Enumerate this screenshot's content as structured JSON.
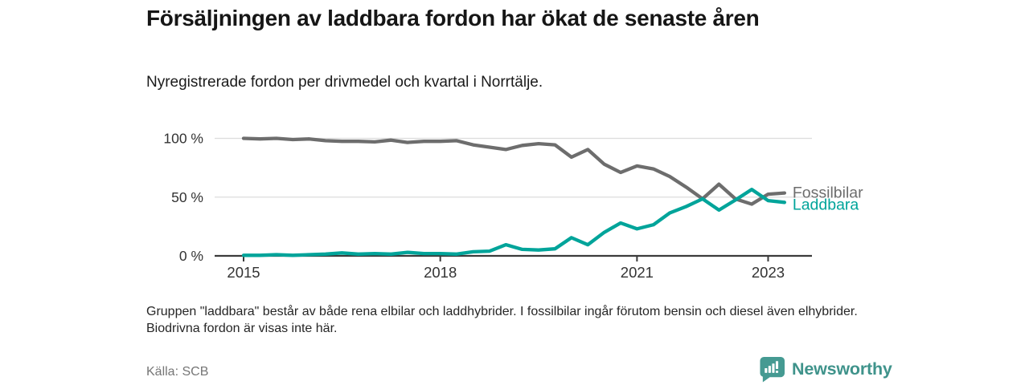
{
  "header": {
    "title": "Försäljningen av laddbara fordon har ökat de senaste åren",
    "subtitle": "Nyregistrerade fordon per drivmedel och kvartal i Norrtälje."
  },
  "chart_data": {
    "type": "line",
    "unit": "%",
    "ylim": [
      0,
      100
    ],
    "grid": "horizontal",
    "legend_position": "right-end-labels",
    "y_ticks": [
      {
        "label": "100 %",
        "value": 100
      },
      {
        "label": "50 %",
        "value": 50
      },
      {
        "label": "0 %",
        "value": 0
      }
    ],
    "x_ticks": [
      {
        "label": "2015",
        "quarter_index": 0
      },
      {
        "label": "2018",
        "quarter_index": 12
      },
      {
        "label": "2021",
        "quarter_index": 24
      },
      {
        "label": "2023",
        "quarter_index": 32
      }
    ],
    "quarters": [
      "2015 Q1",
      "2015 Q2",
      "2015 Q3",
      "2015 Q4",
      "2016 Q1",
      "2016 Q2",
      "2016 Q3",
      "2016 Q4",
      "2017 Q1",
      "2017 Q2",
      "2017 Q3",
      "2017 Q4",
      "2018 Q1",
      "2018 Q2",
      "2018 Q3",
      "2018 Q4",
      "2019 Q1",
      "2019 Q2",
      "2019 Q3",
      "2019 Q4",
      "2020 Q1",
      "2020 Q2",
      "2020 Q3",
      "2020 Q4",
      "2021 Q1",
      "2021 Q2",
      "2021 Q3",
      "2021 Q4",
      "2022 Q1",
      "2022 Q2",
      "2022 Q3",
      "2022 Q4",
      "2023 Q1",
      "2023 Q2"
    ],
    "series": [
      {
        "name": "Fossilbilar",
        "color": "#6d6d6d",
        "values": [
          100,
          99.5,
          100,
          99,
          99.5,
          98,
          97.5,
          97.5,
          97,
          98.5,
          96.5,
          97.5,
          97.5,
          98,
          94.5,
          92.5,
          90.5,
          94,
          95.5,
          94.5,
          84,
          90.5,
          78,
          71,
          76.5,
          74,
          67.5,
          58.5,
          48.5,
          61,
          48.5,
          44,
          52.5,
          53.5
        ]
      },
      {
        "name": "Laddbara",
        "color": "#00a49a",
        "values": [
          0.5,
          0.5,
          1,
          0.5,
          1,
          1.5,
          2.5,
          1.5,
          2,
          1.5,
          3,
          2,
          2,
          1.5,
          3.5,
          4,
          9.5,
          5.5,
          5,
          6,
          15.5,
          9.5,
          20,
          28,
          23,
          26.5,
          36.5,
          42,
          48.5,
          39,
          47.5,
          56.5,
          47,
          45.5
        ]
      }
    ],
    "axis_color": "#3b3b3b",
    "gridline_color": "#dcdcdc",
    "tick_label_color": "#333333"
  },
  "footer": {
    "note": "Gruppen \"laddbara\" består av både rena elbilar och laddhybrider. I fossilbilar ingår förutom bensin och diesel även elhybrider. Biodrivna fordon är visas inte här.",
    "source": "Källa: SCB",
    "brand": "Newsworthy"
  }
}
